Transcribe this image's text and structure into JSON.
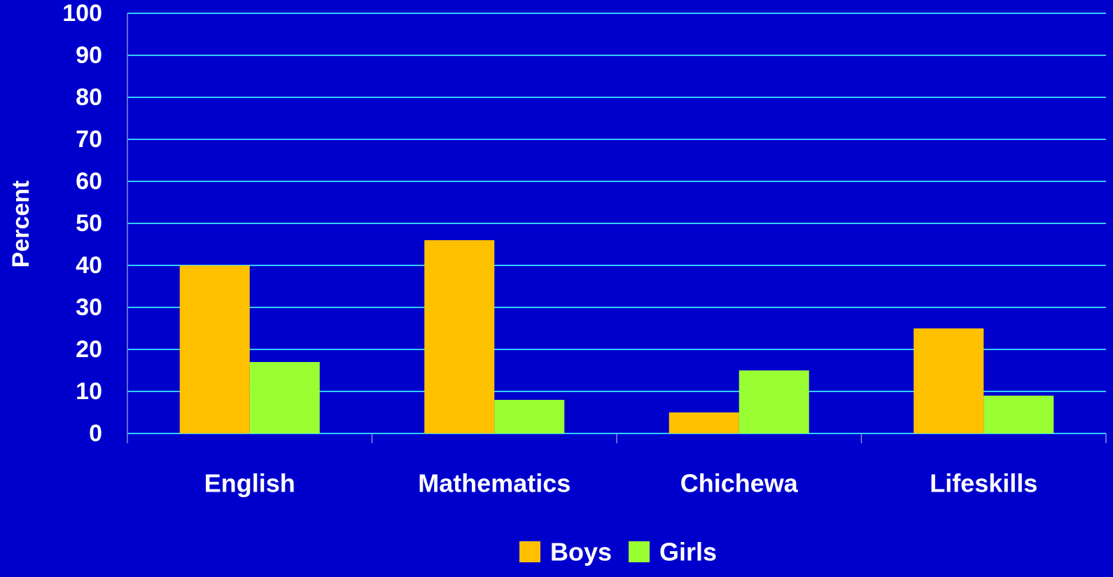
{
  "chart_data": {
    "type": "bar",
    "categories": [
      "English",
      "Mathematics",
      "Chichewa",
      "Lifeskills"
    ],
    "series": [
      {
        "name": "Boys",
        "color": "#ffc000",
        "values": [
          40,
          46,
          5,
          25
        ]
      },
      {
        "name": "Girls",
        "color": "#99ff33",
        "values": [
          17,
          8,
          15,
          9
        ]
      }
    ],
    "y_label": "Percent",
    "ylim": [
      0,
      100
    ],
    "yticks": [
      0,
      10,
      20,
      30,
      40,
      50,
      60,
      70,
      80,
      90,
      100
    ],
    "grid": true,
    "legend": "bottom"
  }
}
